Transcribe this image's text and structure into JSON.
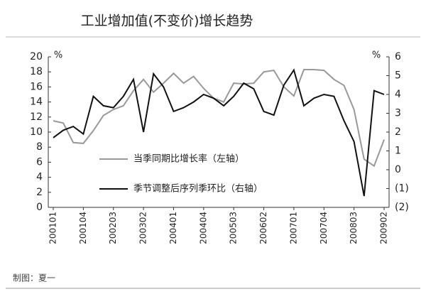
{
  "chart_data": {
    "type": "line",
    "title": "工业增加值(不变价)增长趋势",
    "ylabel": "%",
    "y2label": "%",
    "categories": [
      "200101",
      null,
      null,
      "200104",
      null,
      null,
      "200203",
      null,
      null,
      "200302",
      null,
      null,
      "200401",
      null,
      null,
      "200404",
      null,
      null,
      "200503",
      null,
      null,
      "200602",
      null,
      null,
      "200701",
      null,
      null,
      "200704",
      null,
      null,
      "200803",
      null,
      null,
      "200902"
    ],
    "series": [
      {
        "name": "当季同期比增长率（左轴）",
        "color": "#999999",
        "axis": "y",
        "values": [
          11.5,
          11.2,
          8.6,
          8.5,
          10.2,
          12.2,
          13.0,
          13.5,
          15.5,
          17.0,
          15.3,
          16.5,
          17.8,
          16.5,
          17.4,
          15.8,
          14.5,
          14.0,
          16.5,
          16.4,
          16.5,
          18.0,
          18.2,
          16.0,
          14.8,
          18.3,
          18.3,
          18.2,
          17.0,
          16.2,
          13.0,
          6.4,
          5.5,
          9.0
        ]
      },
      {
        "name": "季节调整后序列季环比（右轴）",
        "color": "#111111",
        "axis": "y2",
        "values": [
          1.7,
          2.1,
          2.3,
          1.9,
          3.9,
          3.4,
          3.3,
          3.9,
          4.8,
          2.0,
          5.1,
          4.4,
          3.1,
          3.3,
          3.6,
          4.0,
          3.8,
          3.4,
          3.9,
          4.6,
          4.3,
          3.1,
          2.9,
          4.5,
          5.3,
          3.4,
          3.8,
          4.0,
          3.9,
          2.6,
          1.5,
          -1.4,
          4.2,
          4.0
        ]
      }
    ],
    "ylim": [
      0,
      20
    ],
    "yticks": [
      0,
      2,
      4,
      6,
      8,
      10,
      12,
      14,
      16,
      18,
      20
    ],
    "y2lim": [
      -2,
      6
    ],
    "y2ticks": [
      {
        "value": -2,
        "label": "(2)"
      },
      {
        "value": -1,
        "label": "(1)"
      },
      0,
      1,
      2,
      3,
      4,
      5,
      6
    ],
    "footer": "制图：夏一"
  }
}
